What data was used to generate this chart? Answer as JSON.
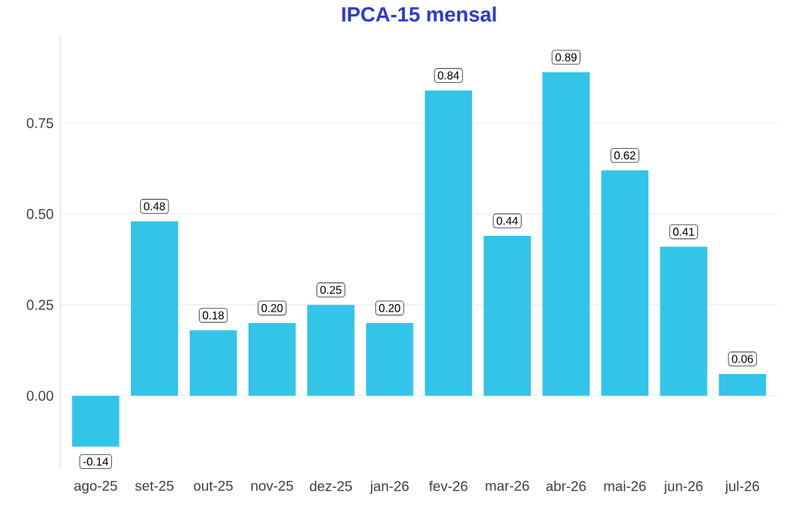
{
  "chart_data": {
    "type": "bar",
    "title": "IPCA-15 mensal",
    "categories": [
      "ago-25",
      "set-25",
      "out-25",
      "nov-25",
      "dez-25",
      "jan-26",
      "fev-26",
      "mar-26",
      "abr-26",
      "mai-26",
      "jun-26",
      "jul-26"
    ],
    "values": [
      -0.14,
      0.48,
      0.18,
      0.2,
      0.25,
      0.2,
      0.84,
      0.44,
      0.89,
      0.62,
      0.41,
      0.06
    ],
    "value_labels": [
      "-0.14",
      "0.48",
      "0.18",
      "0.20",
      "0.25",
      "0.20",
      "0.84",
      "0.44",
      "0.89",
      "0.62",
      "0.41",
      "0.06"
    ],
    "color": "#33c4ea",
    "ylim": [
      -0.2,
      0.99
    ],
    "yticks": [
      {
        "value": 0,
        "label": "0.00"
      },
      {
        "value": 0.25,
        "label": "0.25"
      },
      {
        "value": 0.5,
        "label": "0.50"
      },
      {
        "value": 0.75,
        "label": "0.75"
      }
    ],
    "grid": "y"
  }
}
